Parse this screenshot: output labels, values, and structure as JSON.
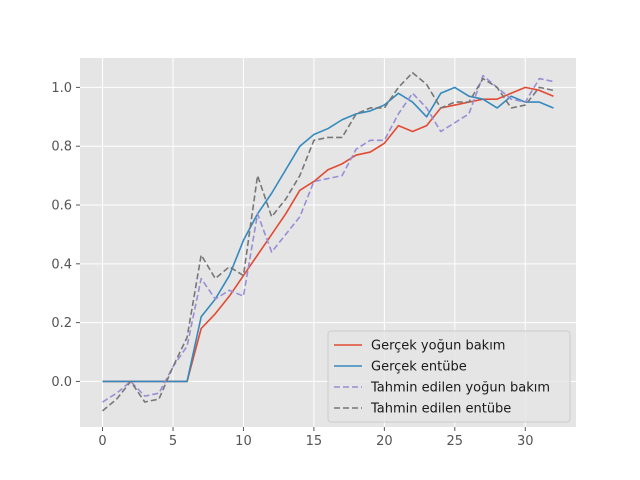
{
  "chart_data": {
    "type": "line",
    "title": "",
    "xlabel": "",
    "ylabel": "",
    "xlim": [
      -1.6,
      33.6
    ],
    "ylim": [
      -0.155,
      1.1
    ],
    "x_ticks": [
      0,
      5,
      10,
      15,
      20,
      25,
      30
    ],
    "y_ticks": [
      0.0,
      0.2,
      0.4,
      0.6,
      0.8,
      1.0
    ],
    "x_tick_labels": [
      "0",
      "5",
      "10",
      "15",
      "20",
      "25",
      "30"
    ],
    "y_tick_labels": [
      "0.0",
      "0.2",
      "0.4",
      "0.6",
      "0.8",
      "1.0"
    ],
    "grid": true,
    "legend_position": "lower-right",
    "x": [
      0,
      1,
      2,
      3,
      4,
      5,
      6,
      7,
      8,
      9,
      10,
      11,
      12,
      13,
      14,
      15,
      16,
      17,
      18,
      19,
      20,
      21,
      22,
      23,
      24,
      25,
      26,
      27,
      28,
      29,
      30,
      31,
      32
    ],
    "series": [
      {
        "name": "Gerçek yoğun bakım",
        "color": "#E24A33",
        "dash": "solid",
        "values": [
          0,
          0,
          0,
          0,
          0,
          0,
          0,
          0.18,
          0.23,
          0.29,
          0.36,
          0.43,
          0.5,
          0.57,
          0.65,
          0.68,
          0.72,
          0.74,
          0.77,
          0.78,
          0.81,
          0.87,
          0.85,
          0.87,
          0.93,
          0.94,
          0.95,
          0.96,
          0.96,
          0.98,
          1.0,
          0.99,
          0.97
        ]
      },
      {
        "name": "Gerçek entübe",
        "color": "#348ABD",
        "dash": "solid",
        "values": [
          0,
          0,
          0,
          0,
          0,
          0,
          0,
          0.22,
          0.28,
          0.36,
          0.48,
          0.57,
          0.64,
          0.72,
          0.8,
          0.84,
          0.86,
          0.89,
          0.91,
          0.92,
          0.94,
          0.98,
          0.95,
          0.9,
          0.98,
          1.0,
          0.97,
          0.96,
          0.93,
          0.97,
          0.95,
          0.95,
          0.93
        ]
      },
      {
        "name": "Tahmin edilen yoğun bakım",
        "color": "#988ED5",
        "dash": "dashed",
        "values": [
          -0.07,
          -0.04,
          0.0,
          -0.05,
          -0.04,
          0.05,
          0.12,
          0.35,
          0.28,
          0.31,
          0.29,
          0.57,
          0.44,
          0.5,
          0.56,
          0.68,
          0.69,
          0.7,
          0.79,
          0.82,
          0.82,
          0.91,
          0.98,
          0.93,
          0.85,
          0.88,
          0.91,
          1.04,
          1.0,
          0.96,
          0.95,
          1.03,
          1.02
        ]
      },
      {
        "name": "Tahmin edilen entübe",
        "color": "#777777",
        "dash": "dashed",
        "values": [
          -0.1,
          -0.06,
          0.0,
          -0.07,
          -0.06,
          0.05,
          0.15,
          0.43,
          0.35,
          0.39,
          0.36,
          0.7,
          0.56,
          0.62,
          0.7,
          0.82,
          0.83,
          0.83,
          0.91,
          0.93,
          0.93,
          1.0,
          1.05,
          1.01,
          0.93,
          0.95,
          0.95,
          1.03,
          1.0,
          0.93,
          0.94,
          1.0,
          0.99
        ]
      }
    ]
  }
}
